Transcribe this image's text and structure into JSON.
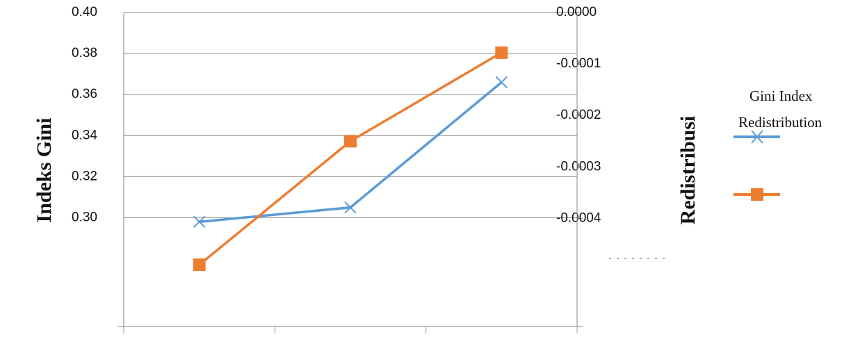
{
  "chart_data": {
    "type": "line",
    "categories": [
      null,
      null,
      null
    ],
    "ylabel": "Indeks Gini",
    "y2label": "Redistribusi",
    "ylim": [
      0.247,
      0.4
    ],
    "yticks": [
      {
        "value": 0.4,
        "label": "0.40"
      },
      0.38,
      0.36,
      0.34,
      0.32,
      {
        "value": 0.3,
        "label": "0.30"
      }
    ],
    "y2lim": [
      -0.00061,
      0
    ],
    "y2ticks": [
      {
        "value": 0,
        "label": "0.0000"
      },
      -0.0001,
      -0.0002,
      -0.0003,
      -0.0004
    ],
    "grid": true,
    "legend": "right",
    "series": [
      {
        "name": "Gini Index",
        "color": "#5b9bd5",
        "marker": "x",
        "values": [
          0.298,
          0.305,
          0.366
        ]
      },
      {
        "name": "Redistribution",
        "color": "#ed7d31",
        "marker": "square",
        "axis": "y2",
        "values": [
          -0.00049,
          -0.00025,
          -7.8e-05
        ]
      }
    ]
  }
}
